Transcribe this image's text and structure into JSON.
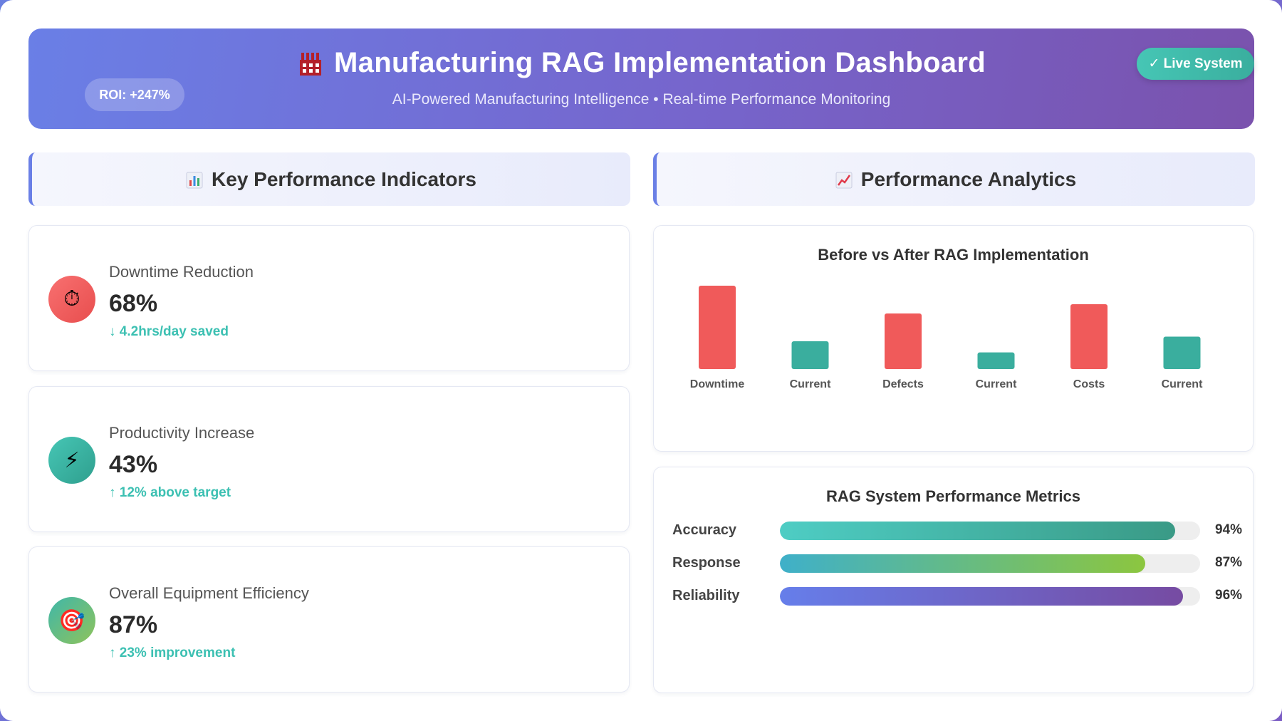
{
  "header": {
    "icon": "factory-icon",
    "title": "Manufacturing RAG Implementation Dashboard",
    "subtitle": "AI-Powered Manufacturing Intelligence • Real-time Performance Monitoring",
    "roi_badge": "ROI: +247%",
    "status_badge": "✓ Live System",
    "status_color": "#46c6b5"
  },
  "sections": {
    "kpi_title": "Key Performance Indicators",
    "kpi_icon": "bar-chart-icon",
    "analytics_title": "Performance Analytics",
    "analytics_icon": "trend-chart-icon"
  },
  "kpis": [
    {
      "icon": "stopwatch-icon",
      "glyph": "⏱",
      "label": "Downtime Reduction",
      "value": "68%",
      "change": "↓ 4.2hrs/day saved"
    },
    {
      "icon": "lightning-icon",
      "glyph": "⚡",
      "label": "Productivity Increase",
      "value": "43%",
      "change": "↑ 12% above target"
    },
    {
      "icon": "target-icon",
      "glyph": "🎯",
      "label": "Overall Equipment Efficiency",
      "value": "87%",
      "change": "↑ 23% improvement"
    }
  ],
  "chart_data": {
    "type": "bar",
    "title": "Before vs After RAG Implementation",
    "categories": [
      "Downtime",
      "Current",
      "Defects",
      "Current",
      "Costs",
      "Current"
    ],
    "values": [
      90,
      30,
      60,
      18,
      70,
      35
    ],
    "bar_colors": [
      "#f05a5a",
      "#3aae9e",
      "#f05a5a",
      "#3aae9e",
      "#f05a5a",
      "#3aae9e"
    ],
    "ylim": [
      0,
      100
    ],
    "grid": false
  },
  "metrics": {
    "title": "RAG System Performance Metrics",
    "items": [
      {
        "label": "Accuracy",
        "value": 94,
        "display": "94%",
        "gradient": [
          "#4ecdc4",
          "#3a9a86"
        ]
      },
      {
        "label": "Response",
        "value": 87,
        "display": "87%",
        "gradient": [
          "#3fb0c9",
          "#8cc63f"
        ]
      },
      {
        "label": "Reliability",
        "value": 96,
        "display": "96%",
        "gradient": [
          "#667eea",
          "#764ba2"
        ]
      }
    ]
  }
}
